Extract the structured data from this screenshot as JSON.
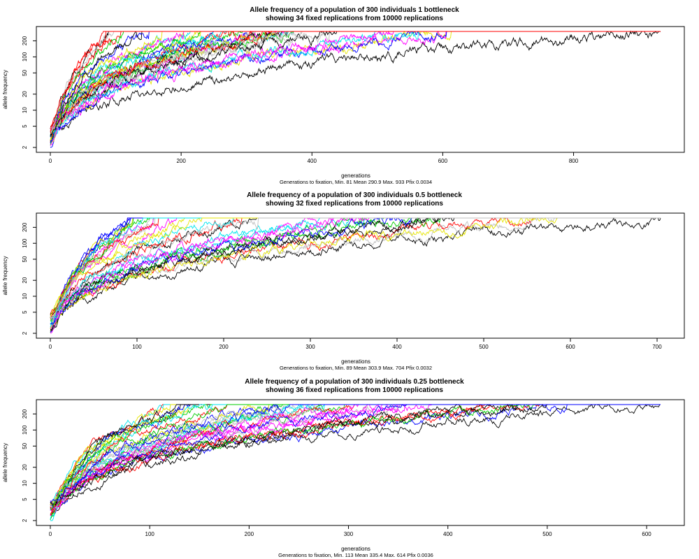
{
  "figure": {
    "palette": [
      "#000000",
      "#ff0000",
      "#00cd00",
      "#0000ff",
      "#00e5ee",
      "#ff00ff",
      "#e5e500",
      "#bebebe"
    ]
  },
  "chart_data": [
    {
      "type": "line",
      "title": "Allele frequency of a population of 300 individuals 1 bottleneck",
      "subtitle": "showing 34 fixed replications from 10000 replications",
      "xlabel": "generations",
      "ylabel": "allele frequency",
      "summary": "Generations to fixation, Min. 81   Mean 290.9   Max. 933   Pfix 0.0034",
      "x_ticks": [
        "0",
        "200",
        "400",
        "600",
        "800"
      ],
      "y_ticks": [
        "2",
        "5",
        "10",
        "20",
        "50",
        "100",
        "200"
      ],
      "xlim": [
        0,
        933
      ],
      "ylim": [
        2,
        300
      ],
      "y_scale": "log",
      "grid": false,
      "n_series": 34,
      "min_generations": 81,
      "max_generations": 933,
      "seed": 11
    },
    {
      "type": "line",
      "title": "Allele frequency of a population of 300 individuals 0.5 bottleneck",
      "subtitle": "showing 32 fixed replications from 10000 replications",
      "xlabel": "generations",
      "ylabel": "allele frequency",
      "summary": "Generations to fixation, Min. 89   Mean 303.9   Max. 704   Pfix 0.0032",
      "x_ticks": [
        "0",
        "100",
        "200",
        "300",
        "400",
        "500",
        "600",
        "700"
      ],
      "y_ticks": [
        "2",
        "5",
        "10",
        "20",
        "50",
        "100",
        "200"
      ],
      "xlim": [
        0,
        704
      ],
      "ylim": [
        2,
        300
      ],
      "y_scale": "log",
      "grid": false,
      "n_series": 32,
      "min_generations": 89,
      "max_generations": 704,
      "seed": 23
    },
    {
      "type": "line",
      "title": "Allele frequency of a population of 300 individuals 0.25 bottleneck",
      "subtitle": "showing 36 fixed replications from 10000 replications",
      "xlabel": "generations",
      "ylabel": "allele frequency",
      "summary": "Generations to fixation, Min. 113   Mean 335.4   Max. 614   Pfix 0.0036",
      "x_ticks": [
        "0",
        "100",
        "200",
        "300",
        "400",
        "500",
        "600"
      ],
      "y_ticks": [
        "2",
        "5",
        "10",
        "20",
        "50",
        "100",
        "200"
      ],
      "xlim": [
        0,
        614
      ],
      "ylim": [
        2,
        300
      ],
      "y_scale": "log",
      "grid": false,
      "n_series": 36,
      "min_generations": 113,
      "max_generations": 614,
      "seed": 37
    }
  ]
}
